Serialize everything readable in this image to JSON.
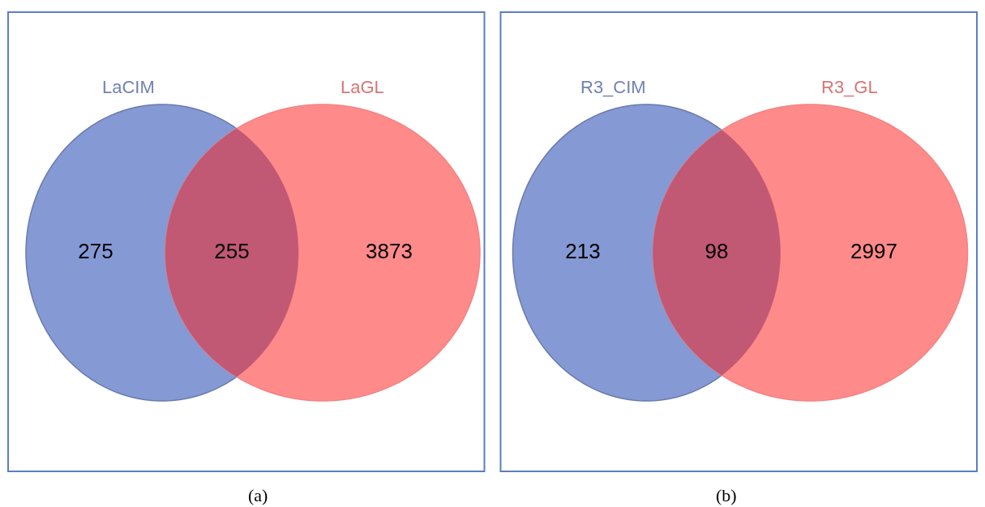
{
  "chart_data": [
    {
      "type": "other",
      "title": "(a)",
      "categories": [
        null,
        null,
        null
      ],
      "values": [
        275,
        255,
        3873
      ],
      "colors": [
        "#8599d4",
        "#c15874",
        "#ff8a8a"
      ],
      "data_labels": true,
      "annotations": [
        "LaCIM",
        "LaGL"
      ]
    },
    {
      "type": "other",
      "title": "(b)",
      "categories": [
        null,
        null,
        null
      ],
      "values": [
        213,
        98,
        2997
      ],
      "colors": [
        "#8599d4",
        "#c15874",
        "#ff8a8a"
      ],
      "data_labels": true,
      "annotations": [
        "R3_CIM",
        "R3_GL"
      ]
    }
  ]
}
